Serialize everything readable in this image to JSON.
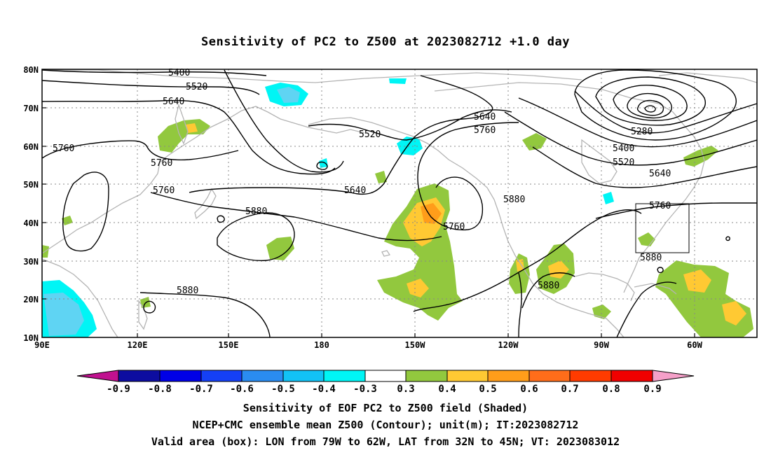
{
  "title": "Sensitivity of PC2 to Z500 at 2023082712 +1.0 day",
  "map": {
    "lat_ticks": [
      "80N",
      "70N",
      "60N",
      "50N",
      "40N",
      "30N",
      "20N",
      "10N"
    ],
    "lon_ticks": [
      "90E",
      "120E",
      "150E",
      "180",
      "150W",
      "120W",
      "90W",
      "60W"
    ],
    "contour_labels": [
      {
        "text": "5400"
      },
      {
        "text": "5520"
      },
      {
        "text": "5640"
      },
      {
        "text": "5760"
      },
      {
        "text": "5760"
      },
      {
        "text": "5760"
      },
      {
        "text": "5880"
      },
      {
        "text": "5880"
      },
      {
        "text": "5520"
      },
      {
        "text": "5640"
      },
      {
        "text": "5640"
      },
      {
        "text": "5760"
      },
      {
        "text": "5760"
      },
      {
        "text": "5880"
      },
      {
        "text": "5880"
      },
      {
        "text": "5280"
      },
      {
        "text": "5400"
      },
      {
        "text": "5520"
      },
      {
        "text": "5640"
      },
      {
        "text": "5760"
      },
      {
        "text": "5880"
      }
    ],
    "shading_colors": {
      "green": "#92c83e",
      "yellow": "#ffc933",
      "orange": "#ff9d1a",
      "light_blue": "#5fd4f3",
      "cyan": "#00f5f5"
    },
    "valid_box": {
      "lon": [
        "79W",
        "62W"
      ],
      "lat": [
        "32N",
        "45N"
      ]
    }
  },
  "colorbar": {
    "labels": [
      "-0.9",
      "-0.8",
      "-0.7",
      "-0.6",
      "-0.5",
      "-0.4",
      "-0.3",
      "0.3",
      "0.4",
      "0.5",
      "0.6",
      "0.7",
      "0.8",
      "0.9"
    ],
    "colors": [
      "#c0118f",
      "#0d0da0",
      "#0000e6",
      "#1540f5",
      "#2a8cf0",
      "#12c2f5",
      "#00f5f5",
      "#ffffff",
      "#92c83e",
      "#ffc933",
      "#ff9d1a",
      "#ff6d1a",
      "#ff3b00",
      "#f00000",
      "#f5a0c9"
    ]
  },
  "captions": [
    "Sensitivity of EOF PC2 to Z500 field (Shaded)",
    "NCEP+CMC ensemble mean Z500 (Contour); unit(m); IT:2023082712",
    "Valid area (box): LON from 79W to 62W, LAT from 32N to 45N; VT: 2023083012"
  ]
}
